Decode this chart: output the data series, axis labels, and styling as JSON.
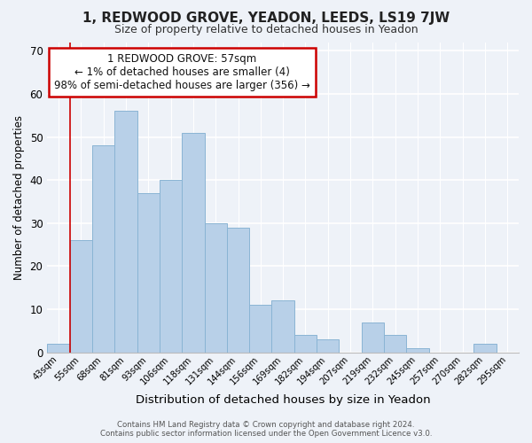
{
  "title": "1, REDWOOD GROVE, YEADON, LEEDS, LS19 7JW",
  "subtitle": "Size of property relative to detached houses in Yeadon",
  "xlabel": "Distribution of detached houses by size in Yeadon",
  "ylabel": "Number of detached properties",
  "footer_line1": "Contains HM Land Registry data © Crown copyright and database right 2024.",
  "footer_line2": "Contains public sector information licensed under the Open Government Licence v3.0.",
  "bar_labels": [
    "43sqm",
    "55sqm",
    "68sqm",
    "81sqm",
    "93sqm",
    "106sqm",
    "118sqm",
    "131sqm",
    "144sqm",
    "156sqm",
    "169sqm",
    "182sqm",
    "194sqm",
    "207sqm",
    "219sqm",
    "232sqm",
    "245sqm",
    "257sqm",
    "270sqm",
    "282sqm",
    "295sqm"
  ],
  "bar_values": [
    2,
    26,
    48,
    56,
    37,
    40,
    51,
    30,
    29,
    11,
    12,
    4,
    3,
    0,
    7,
    4,
    1,
    0,
    0,
    2,
    0
  ],
  "bar_color": "#b8d0e8",
  "bar_edge_color": "#8ab4d4",
  "ylim": [
    0,
    72
  ],
  "yticks": [
    0,
    10,
    20,
    30,
    40,
    50,
    60,
    70
  ],
  "vline_x_index": 1,
  "vline_color": "#cc0000",
  "annotation_title": "1 REDWOOD GROVE: 57sqm",
  "annotation_line1": "← 1% of detached houses are smaller (4)",
  "annotation_line2": "98% of semi-detached houses are larger (356) →",
  "annotation_box_color": "#ffffff",
  "annotation_box_edge": "#cc0000",
  "background_color": "#eef2f8"
}
